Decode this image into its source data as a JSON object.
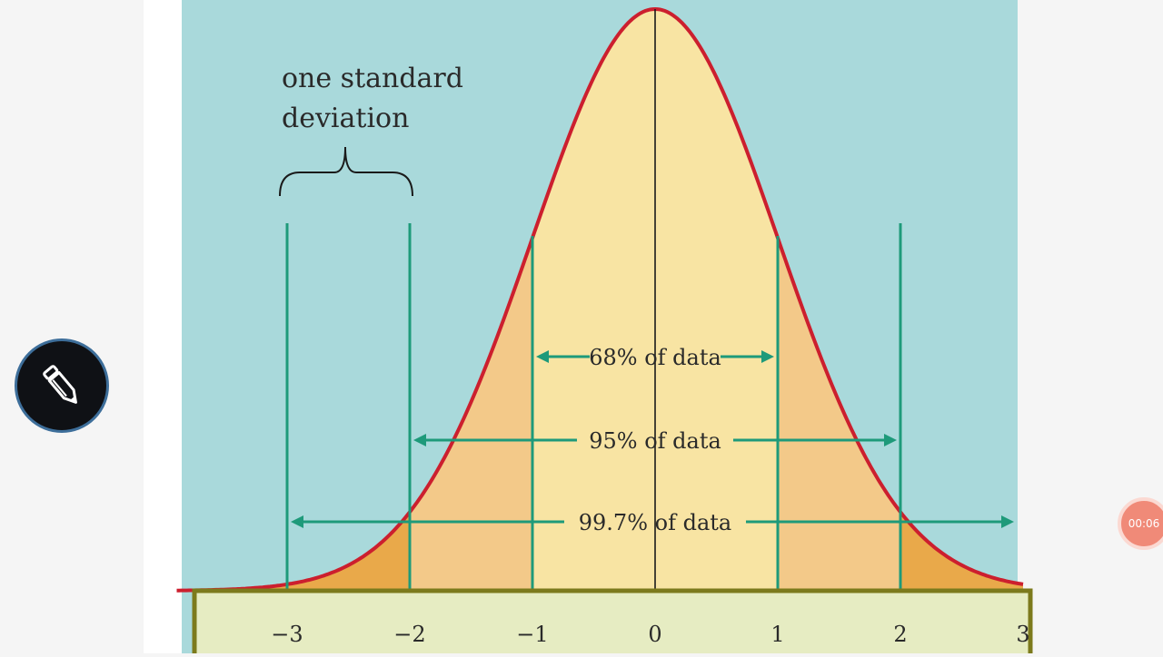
{
  "video": {
    "elapsed_time": "00:06"
  },
  "tools": {
    "edit_icon": "pencil-icon"
  },
  "colors": {
    "panel_bg": "#a9d9db",
    "curve": "#cc1f2e",
    "fill_inner": "#f8e4a3",
    "fill_mid": "#f3c989",
    "fill_outer": "#e9a94a",
    "guide": "#1e9a7a",
    "axis_box": "#e6ecc2",
    "axis_border": "#7c7a1c"
  },
  "chart_data": {
    "type": "area",
    "annotation": "one standard\ndeviation",
    "annotation_lines": [
      "one standard",
      "deviation"
    ],
    "x_ticks": [
      "−3",
      "−2",
      "−1",
      "0",
      "1",
      "2",
      "3"
    ],
    "x_range": [
      -3.9,
      3
    ],
    "ranges": [
      {
        "label": "68% of data",
        "from": -1,
        "to": 1
      },
      {
        "label": "95% of data",
        "from": -2,
        "to": 2
      },
      {
        "label": "99.7% of data",
        "from": -3,
        "to": 3
      }
    ],
    "grid": false,
    "legend": "none"
  }
}
